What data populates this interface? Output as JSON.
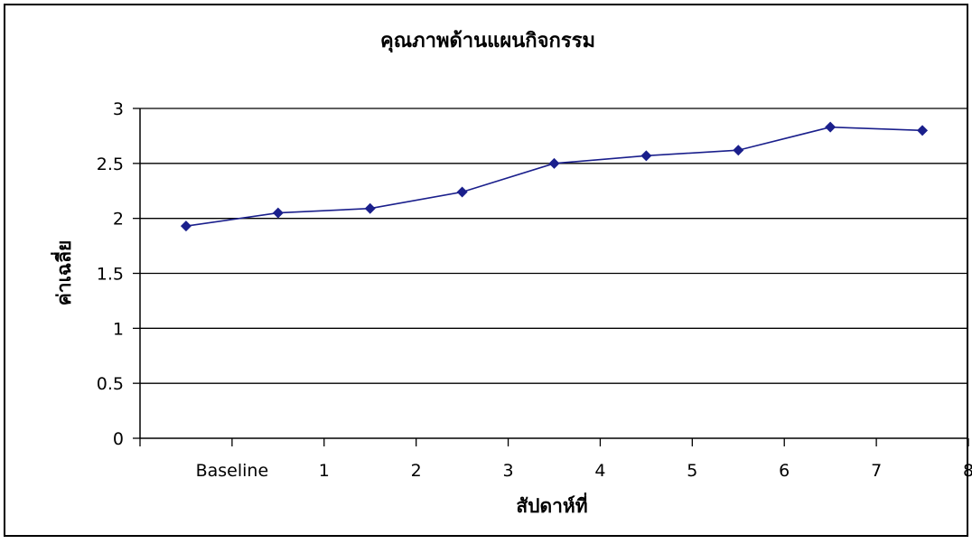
{
  "chart_data": {
    "type": "line",
    "title": "คุณภาพด้านแผนกิจกรรม",
    "xlabel": "สัปดาห์ที่",
    "ylabel": "ค่าเฉลี่ย",
    "x_tick_labels": [
      "Baseline",
      "1",
      "2",
      "3",
      "4",
      "5",
      "6",
      "7",
      "8"
    ],
    "y_tick_labels": [
      "0",
      "0.5",
      "1",
      "1.5",
      "2",
      "2.5",
      "3"
    ],
    "ylim": [
      0,
      3
    ],
    "y_step": 0.5,
    "grid": "horizontal",
    "legend": "none",
    "series": [
      {
        "x": [
          0.5,
          1.5,
          2.5,
          3.5,
          4.5,
          5.5,
          6.5,
          7.5,
          8.5
        ],
        "values": [
          1.93,
          2.05,
          2.09,
          2.24,
          2.5,
          2.57,
          2.62,
          2.83,
          2.8
        ],
        "color": "#1a1f8c",
        "marker": "diamond"
      }
    ],
    "frame_color": "#000000"
  }
}
